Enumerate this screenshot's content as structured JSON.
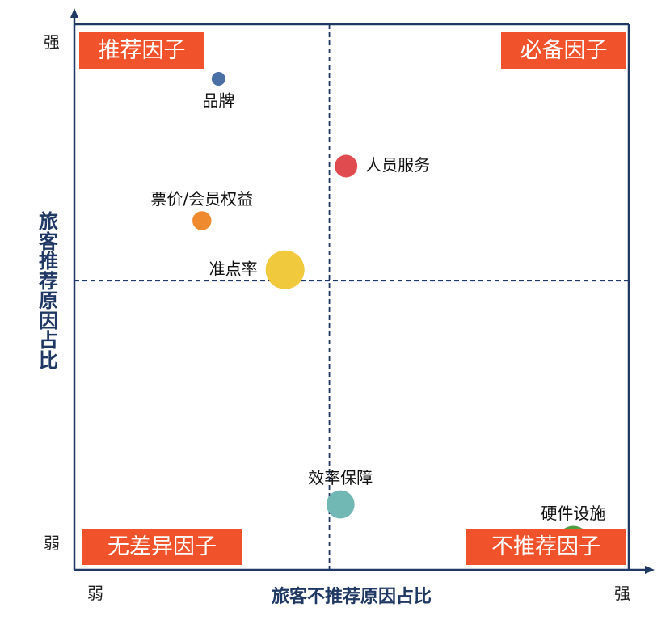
{
  "chart_data": {
    "type": "scatter",
    "title": "",
    "xlabel": "旅客不推荐原因占比",
    "ylabel": "旅客推荐原因占比",
    "x_ticks": {
      "low": "弱",
      "high": "强"
    },
    "y_ticks": {
      "low": "弱",
      "high": "强"
    },
    "xlim": [
      0,
      100
    ],
    "ylim": [
      0,
      100
    ],
    "divider": {
      "x": 46,
      "y": 53
    },
    "quadrants": {
      "top_left": "推荐因子",
      "top_right": "必备因子",
      "bottom_left": "无差异因子",
      "bottom_right": "不推荐因子"
    },
    "points": [
      {
        "label": "品牌",
        "x": 26,
        "y": 90,
        "size": 1,
        "color": "#4a6fa5",
        "label_pos": "below"
      },
      {
        "label": "人员服务",
        "x": 49,
        "y": 74,
        "size": 5,
        "color": "#e04b4f",
        "label_pos": "right"
      },
      {
        "label": "票价/会员权益",
        "x": 23,
        "y": 64,
        "size": 3,
        "color": "#ef8a2e",
        "label_pos": "above"
      },
      {
        "label": "准点率",
        "x": 38,
        "y": 55,
        "size": 20,
        "color": "#f1c93c",
        "label_pos": "left"
      },
      {
        "label": "效率保障",
        "x": 48,
        "y": 12,
        "size": 9,
        "color": "#71b7b3",
        "label_pos": "above"
      },
      {
        "label": "硬件设施",
        "x": 90,
        "y": 5,
        "size": 14,
        "color": "#4f9d45",
        "label_pos": "above"
      }
    ],
    "colors": {
      "axis": "#1f3864",
      "frame": "#1f3864",
      "quadrant_label_bg": "#f0522b"
    }
  }
}
